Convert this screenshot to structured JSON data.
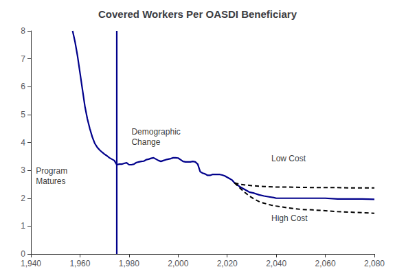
{
  "chart_data": {
    "type": "line",
    "title": "Covered Workers Per OASDI Beneficiary",
    "xlim": [
      1940,
      2080
    ],
    "ylim": [
      0,
      8
    ],
    "xticks": [
      1940,
      1960,
      1980,
      2000,
      2020,
      2040,
      2060,
      2080
    ],
    "yticks": [
      0,
      1,
      2,
      3,
      4,
      5,
      6,
      7,
      8
    ],
    "grid": false,
    "vertical_line": {
      "x": 1975,
      "color": "#00008B"
    },
    "series": [
      {
        "color": "#00008B",
        "line_style": "solid",
        "x": [
          1957,
          1958,
          1959,
          1960,
          1961,
          1962,
          1963,
          1964,
          1965,
          1966,
          1967,
          1968,
          1969,
          1970,
          1971,
          1972,
          1973,
          1974,
          1975,
          1976,
          1977,
          1978,
          1979,
          1980,
          1981,
          1982,
          1983,
          1984,
          1985,
          1986,
          1987,
          1988,
          1989,
          1990,
          1991,
          1992,
          1993,
          1994,
          1995,
          1996,
          1997,
          1998,
          1999,
          2000,
          2001,
          2002,
          2003,
          2004,
          2005,
          2006,
          2007,
          2008,
          2009,
          2010,
          2011,
          2012,
          2013,
          2014,
          2015,
          2016,
          2017,
          2018,
          2019,
          2020,
          2021,
          2022,
          2023
        ],
        "values": [
          8.0,
          7.6,
          7.1,
          6.5,
          5.9,
          5.3,
          4.85,
          4.5,
          4.2,
          3.97,
          3.83,
          3.73,
          3.65,
          3.58,
          3.52,
          3.45,
          3.4,
          3.35,
          3.2,
          3.22,
          3.22,
          3.25,
          3.27,
          3.2,
          3.2,
          3.22,
          3.28,
          3.3,
          3.32,
          3.33,
          3.38,
          3.4,
          3.43,
          3.45,
          3.4,
          3.35,
          3.32,
          3.35,
          3.38,
          3.4,
          3.42,
          3.45,
          3.45,
          3.44,
          3.38,
          3.32,
          3.3,
          3.3,
          3.3,
          3.32,
          3.3,
          3.22,
          2.95,
          2.9,
          2.87,
          2.82,
          2.82,
          2.85,
          2.85,
          2.85,
          2.85,
          2.83,
          2.8,
          2.75,
          2.7,
          2.65,
          2.55
        ]
      },
      {
        "color": "#00008B",
        "line_style": "solid",
        "x": [
          2023,
          2025,
          2027,
          2029,
          2031,
          2033,
          2035,
          2037,
          2039,
          2040,
          2042,
          2045,
          2050,
          2053,
          2055,
          2060,
          2065,
          2070,
          2075,
          2080
        ],
        "values": [
          2.55,
          2.42,
          2.32,
          2.22,
          2.18,
          2.12,
          2.08,
          2.05,
          2.02,
          2.0,
          2.0,
          2.0,
          2.0,
          2.0,
          2.0,
          2.0,
          1.97,
          1.97,
          1.97,
          1.96
        ]
      },
      {
        "color": "#000000",
        "line_style": "dashed",
        "x": [
          2023,
          2025,
          2030,
          2035,
          2040,
          2045,
          2050,
          2055,
          2060,
          2065,
          2070,
          2075,
          2080
        ],
        "values": [
          2.55,
          2.5,
          2.45,
          2.42,
          2.4,
          2.4,
          2.39,
          2.38,
          2.38,
          2.38,
          2.37,
          2.37,
          2.37
        ]
      },
      {
        "color": "#000000",
        "line_style": "dashed",
        "x": [
          2023,
          2025,
          2027,
          2029,
          2031,
          2033,
          2035,
          2038,
          2040,
          2045,
          2050,
          2055,
          2060,
          2065,
          2070,
          2075,
          2080
        ],
        "values": [
          2.55,
          2.38,
          2.22,
          2.08,
          1.97,
          1.88,
          1.82,
          1.75,
          1.72,
          1.65,
          1.6,
          1.58,
          1.55,
          1.52,
          1.5,
          1.48,
          1.46
        ]
      }
    ],
    "annotations": [
      {
        "text": "Program\nMatures",
        "x": 1942,
        "y": 2.8
      },
      {
        "text": "Demographic\nChange",
        "x": 1981,
        "y": 4.2
      },
      {
        "text": "Low Cost",
        "x": 2038,
        "y": 3.42
      },
      {
        "text": "High Cost",
        "x": 2038,
        "y": 1.28
      }
    ]
  }
}
